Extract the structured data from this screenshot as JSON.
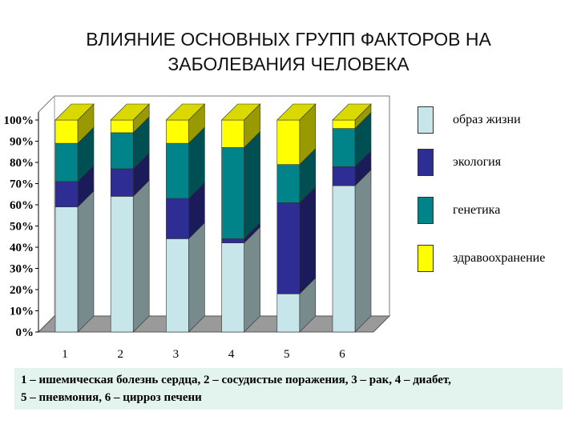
{
  "title_line1": "ВЛИЯНИЕ ОСНОВНЫХ ГРУПП ФАКТОРОВ НА",
  "title_line2": "ЗАБОЛЕВАНИЯ ЧЕЛОВЕКА",
  "caption_line1": "1 – ишемическая болезнь сердца, 2 – сосудистые поражения, 3 – рак, 4 – диабет,",
  "caption_line2": "5 – пневмония, 6 – цирроз печени",
  "colors": {
    "lifestyle": "#c6e6ea",
    "ecology": "#2d2d94",
    "genetics": "#00848a",
    "healthcare": "#ffff00",
    "floor": "#9a9a9a",
    "wall": "#ffffff"
  },
  "chart_data": {
    "type": "bar",
    "stacked": true,
    "three_d": true,
    "categories": [
      "1",
      "2",
      "3",
      "4",
      "5",
      "6"
    ],
    "ylim": [
      0,
      100
    ],
    "yticks": [
      "0%",
      "10%",
      "20%",
      "30%",
      "40%",
      "50%",
      "60%",
      "70%",
      "80%",
      "90%",
      "100%"
    ],
    "grid": false,
    "legend_position": "right",
    "series": [
      {
        "name": "образ жизни",
        "color_key": "lifestyle",
        "values": [
          59,
          64,
          44,
          42,
          18,
          69
        ]
      },
      {
        "name": "экология",
        "color_key": "ecology",
        "values": [
          12,
          13,
          19,
          2,
          43,
          9
        ]
      },
      {
        "name": "генетика",
        "color_key": "genetics",
        "values": [
          18,
          17,
          26,
          43,
          18,
          18
        ]
      },
      {
        "name": "здравоохранение",
        "color_key": "healthcare",
        "values": [
          11,
          6,
          11,
          13,
          21,
          4
        ]
      }
    ]
  }
}
